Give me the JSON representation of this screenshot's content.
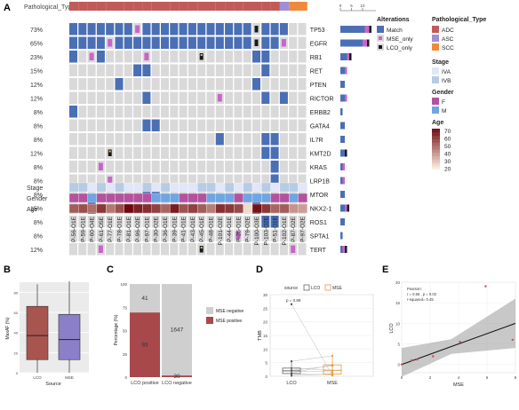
{
  "panel_letters": {
    "a": "A",
    "b": "B",
    "c": "C",
    "d": "D",
    "e": "E"
  },
  "panelA": {
    "track_label_top": "Pathological_Type",
    "annotation_labels": [
      "Stage",
      "Gender",
      "Age"
    ],
    "genes": [
      "TP53",
      "EGFR",
      "RB1",
      "RET",
      "PTEN",
      "RICTOR",
      "ERBB2",
      "GATA4",
      "IL7R",
      "KMT2D",
      "KRAS",
      "LRP1B",
      "MTOR",
      "NKX2-1",
      "ROS1",
      "SPTA1",
      "TERT"
    ],
    "percents": [
      "73%",
      "65%",
      "23%",
      "15%",
      "12%",
      "12%",
      "8%",
      "8%",
      "8%",
      "12%",
      "8%",
      "8%",
      "8%",
      "15%",
      "8%",
      "8%",
      "12%"
    ],
    "samples": [
      "P-56-O1E",
      "P-59-O1E",
      "P-60-O4E",
      "P-61-O5E",
      "P-77-O1E",
      "P-78-O1E",
      "P-81-O1E",
      "P-96-O2E",
      "P-97-O1E",
      "P-30-O2E",
      "P-36-O1E",
      "P-39-O1E",
      "P-41-O1E",
      "P-43-O1E",
      "P-45-O1E",
      "P-48-O1E",
      "P-101-O2E",
      "P-44-O1E",
      "P-25-O1E",
      "P-79-O2E",
      "P-100-O3E",
      "P-103-O2E",
      "P-51-O1E",
      "P-102-O1E",
      "P-87-O2E",
      "P-97-O2E"
    ],
    "bar_axis_ticks": [
      "0",
      "5",
      "10"
    ],
    "grid": [
      "MMMMMMMSMMMMMMMMMMMMLMMM..",
      "MMMMSMMMMMMMMMMMMMMMLMMS..",
      "M.SM....S.....B.....MM..",
      ".......MM............M..",
      ".....M..............M...",
      "........M.......S....M.M",
      "M.......................",
      "........MM..............",
      "................M....MM.",
      "....B................MM.",
      "...S..................M.",
      "....S.................M.",
      "........MM..............",
      "..M......SL.........MS..",
      ".....................MM..",
      "..................S.....",
      "...S..........B.........S"
    ],
    "pathtype": [
      "ADC",
      "ADC",
      "ADC",
      "ADC",
      "ADC",
      "ADC",
      "ADC",
      "ADC",
      "ADC",
      "ADC",
      "ADC",
      "ADC",
      "ADC",
      "ADC",
      "ADC",
      "ADC",
      "ADC",
      "ADC",
      "ADC",
      "ADC",
      "ADC",
      "ADC",
      "ADC",
      "ASC",
      "SCC",
      "SCC"
    ],
    "stage": [
      "IVB",
      "IVB",
      "IVA",
      "IVB",
      "IVA",
      "IVB",
      "IVA",
      "IVA",
      "IVB",
      "IVA",
      "IVB",
      "IVA",
      "IVA",
      "IVA",
      "IVB",
      "IVB",
      "IVA",
      "IVB",
      "IVA",
      "IVB",
      "IVA",
      "IVB",
      "IVA",
      "IVB",
      "IVB",
      "IVA"
    ],
    "gender": [
      "F",
      "F",
      "M",
      "F",
      "F",
      "F",
      "F",
      "F",
      "F",
      "M",
      "M",
      "M",
      "F",
      "F",
      "F",
      "M",
      "M",
      "M",
      "F",
      "M",
      "M",
      "M",
      "F",
      "F",
      "M",
      "F"
    ],
    "age": [
      52,
      55,
      48,
      60,
      46,
      55,
      70,
      65,
      62,
      58,
      50,
      66,
      54,
      58,
      52,
      45,
      62,
      60,
      56,
      25,
      68,
      60,
      50,
      52,
      40,
      38
    ],
    "right_bars": [
      {
        "m": 11,
        "s": 2,
        "l": 1
      },
      {
        "m": 10,
        "s": 2,
        "l": 1
      },
      {
        "m": 3,
        "s": 1,
        "l": 1
      },
      {
        "m": 2,
        "s": 1,
        "l": 0
      },
      {
        "m": 2,
        "s": 0,
        "l": 0
      },
      {
        "m": 2,
        "s": 1,
        "l": 0
      },
      {
        "m": 1,
        "s": 0,
        "l": 0
      },
      {
        "m": 2,
        "s": 0,
        "l": 0
      },
      {
        "m": 2,
        "s": 0,
        "l": 0
      },
      {
        "m": 2,
        "s": 0,
        "l": 1
      },
      {
        "m": 1,
        "s": 1,
        "l": 0
      },
      {
        "m": 1,
        "s": 1,
        "l": 0
      },
      {
        "m": 2,
        "s": 0,
        "l": 0
      },
      {
        "m": 2,
        "s": 1,
        "l": 1
      },
      {
        "m": 2,
        "s": 0,
        "l": 0
      },
      {
        "m": 1,
        "s": 0,
        "l": 0
      },
      {
        "m": 1,
        "s": 1,
        "l": 1
      }
    ],
    "colors": {
      "match": "#4a6fb5",
      "mse": "#c965c8",
      "lco": "#1a1a1a",
      "empty": "#d9d9d9",
      "ADC": "#c15b59",
      "ASC": "#9f8fd6",
      "SCC": "#ef8a3d",
      "IVA": "#e2e6f7",
      "IVB": "#b7cbe4",
      "F": "#b552a0",
      "M": "#6fa5e3"
    },
    "legend": {
      "alterations_title": "Alterations",
      "alterations": [
        "Match",
        "MSE_only",
        "LCO_only"
      ],
      "path_title": "Pathological_Type",
      "path": [
        "ADC",
        "ASC",
        "SCC"
      ],
      "stage_title": "Stage",
      "stage": [
        "IVA",
        "IVB"
      ],
      "gender_title": "Gender",
      "gender": [
        "F",
        "M"
      ],
      "age_title": "Age",
      "age_ticks": [
        "70",
        "60",
        "50",
        "40",
        "30",
        "20"
      ]
    }
  },
  "chart_data": [
    {
      "panel": "B",
      "type": "box",
      "ylabel": "MaxAF (%)",
      "xlabel": "Source",
      "categories": [
        "LCO",
        "MSE"
      ],
      "yticks": [
        "0",
        "20",
        "40",
        "60",
        "80"
      ],
      "boxes": [
        {
          "name": "LCO",
          "q1": 13,
          "median": 37,
          "q3": 66,
          "lo": 0,
          "hi": 88,
          "color": "#a8544f"
        },
        {
          "name": "MSE",
          "q1": 13,
          "median": 33,
          "q3": 58,
          "lo": 0,
          "hi": 91,
          "color": "#8b80c7"
        }
      ]
    },
    {
      "panel": "C",
      "type": "bar",
      "ylabel": "Percentage (%)",
      "yticks": [
        "0",
        "25",
        "50",
        "75",
        "100"
      ],
      "categories": [
        "LCO positive",
        "LCO negative"
      ],
      "series": [
        {
          "name": "MSE positive",
          "values": [
            93,
            30
          ],
          "color": "#a8484b"
        },
        {
          "name": "MSE negative",
          "values": [
            41,
            1647
          ],
          "color": "#cfcfcf"
        }
      ],
      "legend": [
        "MSE negative",
        "MSE positive"
      ]
    },
    {
      "panel": "D",
      "type": "box",
      "ylabel": "TMB",
      "categories": [
        "LCO",
        "MSE"
      ],
      "yticks": [
        "0",
        "5",
        "10",
        "15",
        "20",
        "25",
        "30"
      ],
      "legend_title": "source",
      "legend": [
        "LCO",
        "MSE"
      ],
      "stat_label": "p = 0.89",
      "boxes": [
        {
          "name": "LCO",
          "q1": 1.0,
          "median": 2.0,
          "q3": 3.0,
          "lo": 0,
          "hi": 5.5,
          "color": "#666666"
        },
        {
          "name": "MSE",
          "q1": 0.8,
          "median": 2.2,
          "q3": 4.2,
          "lo": 0,
          "hi": 8.0,
          "color": "#e19a45"
        }
      ],
      "pairs": [
        [
          26.5,
          0.3
        ],
        [
          5.5,
          7.5
        ],
        [
          3.0,
          2.2
        ],
        [
          2.2,
          3.8
        ],
        [
          2.0,
          1.6
        ],
        [
          1.2,
          4.2
        ],
        [
          0.8,
          0.6
        ],
        [
          0.2,
          0.9
        ]
      ]
    },
    {
      "panel": "E",
      "type": "scatter",
      "xlabel": "MSE",
      "ylabel": "LCO",
      "xlim": [
        0,
        8
      ],
      "ylim": [
        -2,
        20
      ],
      "xticks": [
        "0",
        "2",
        "4",
        "6",
        "8"
      ],
      "yticks": [
        "0",
        "5",
        "10",
        "15",
        "20"
      ],
      "stats": [
        "Pearson:",
        "r = 0.66 , p = 0.02",
        "r-squared= 0.45"
      ],
      "points": [
        [
          0,
          0
        ],
        [
          0.7,
          1
        ],
        [
          1.1,
          1.2
        ],
        [
          2.2,
          2
        ],
        [
          4.1,
          5.5
        ],
        [
          5.9,
          19
        ],
        [
          7.8,
          6
        ]
      ],
      "fit": {
        "intercept": 0,
        "slope": 1.25
      }
    }
  ]
}
